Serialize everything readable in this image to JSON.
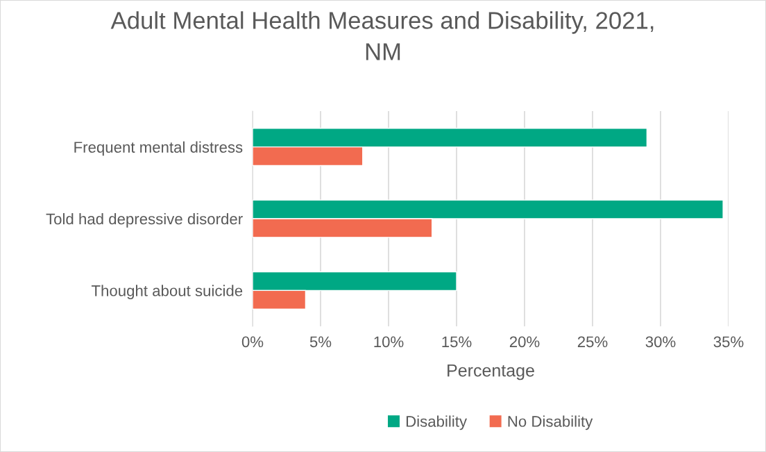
{
  "chart_data": {
    "type": "bar",
    "orientation": "horizontal",
    "title": "Adult Mental Health Measures and Disability, 2021,\nNM",
    "xlabel": "Percentage",
    "categories": [
      "Frequent mental distress",
      "Told had depressive disorder",
      "Thought about suicide"
    ],
    "series": [
      {
        "name": "Disability",
        "color": "#00a884",
        "values": [
          29.0,
          34.6,
          15.0
        ]
      },
      {
        "name": "No Disability",
        "color": "#f26b50",
        "values": [
          8.1,
          13.2,
          3.9
        ]
      }
    ],
    "xlim": [
      0,
      35
    ],
    "xticks": [
      {
        "value": 0,
        "label": "0%"
      },
      {
        "value": 5,
        "label": "5%"
      },
      {
        "value": 10,
        "label": "10%"
      },
      {
        "value": 15,
        "label": "15%"
      },
      {
        "value": 20,
        "label": "20%"
      },
      {
        "value": 25,
        "label": "25%"
      },
      {
        "value": 30,
        "label": "30%"
      },
      {
        "value": 35,
        "label": "35%"
      }
    ],
    "grid": "x",
    "legend": "bottom"
  }
}
